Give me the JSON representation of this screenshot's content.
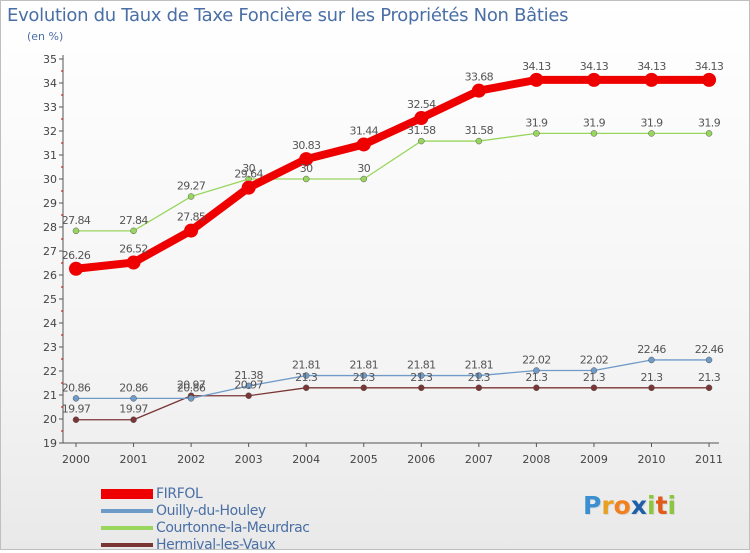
{
  "title": "Evolution du Taux de Taxe Foncière sur les Propriétés Non Bâties",
  "subtitle": "(en %)",
  "logo": {
    "text": "Proxiti",
    "letters": [
      "P",
      "r",
      "o",
      "x",
      "i",
      "t",
      "i"
    ],
    "colors": [
      "#3a8fd0",
      "#e8a020",
      "#f08020",
      "#1e5fa8",
      "#8cc63f",
      "#e05a1a",
      "#8cc63f"
    ]
  },
  "chart_data": {
    "type": "line",
    "title": "Evolution du Taux de Taxe Foncière sur les Propriétés Non Bâties",
    "ylabel": "(en %)",
    "xlabel": "",
    "ylim": [
      19,
      35
    ],
    "yticks": [
      19,
      20,
      21,
      22,
      23,
      24,
      25,
      26,
      27,
      28,
      29,
      30,
      31,
      32,
      33,
      34,
      35
    ],
    "grid": false,
    "legend_position": "bottom-left",
    "x": [
      "2000",
      "2001",
      "2002",
      "2003",
      "2004",
      "2005",
      "2006",
      "2007",
      "2008",
      "2009",
      "2010",
      "2011"
    ],
    "series": [
      {
        "name": "FIRFOL",
        "color": "#ee0000",
        "values": [
          26.26,
          26.52,
          27.85,
          29.64,
          30.83,
          31.44,
          32.54,
          33.68,
          34.13,
          34.13,
          34.13,
          34.13
        ],
        "labels": [
          "26.26",
          "26.52",
          "27.85",
          "29.64",
          "30.83",
          "31.44",
          "32.54",
          "33.68",
          "34.13",
          "34.13",
          "34.13",
          "34.13"
        ]
      },
      {
        "name": "Ouilly-du-Houley",
        "color": "#6f9bc9",
        "values": [
          20.86,
          20.86,
          20.86,
          21.38,
          21.81,
          21.81,
          21.81,
          21.81,
          22.02,
          22.02,
          22.46,
          22.46
        ],
        "labels": [
          "20.86",
          "20.86",
          "20.86",
          "21.38",
          "21.81",
          "21.81",
          "21.81",
          "21.81",
          "22.02",
          "22.02",
          "22.46",
          "22.46"
        ]
      },
      {
        "name": "Courtonne-la-Meurdrac",
        "color": "#99d65e",
        "values": [
          27.84,
          27.84,
          29.27,
          30,
          30,
          30,
          31.58,
          31.58,
          31.9,
          31.9,
          31.9,
          31.9
        ],
        "labels": [
          "27.84",
          "27.84",
          "29.27",
          "30",
          "30",
          "30",
          "31.58",
          "31.58",
          "31.9",
          "31.9",
          "31.9",
          "31.9"
        ]
      },
      {
        "name": "Hermival-les-Vaux",
        "color": "#7a3535",
        "values": [
          19.97,
          19.97,
          20.97,
          20.97,
          21.3,
          21.3,
          21.3,
          21.3,
          21.3,
          21.3,
          21.3,
          21.3
        ],
        "labels": [
          "19.97",
          "19.97",
          "20.97",
          "20.97",
          "21.3",
          "21.3",
          "21.3",
          "21.3",
          "21.3",
          "21.3",
          "21.3",
          "21.3"
        ]
      }
    ]
  }
}
